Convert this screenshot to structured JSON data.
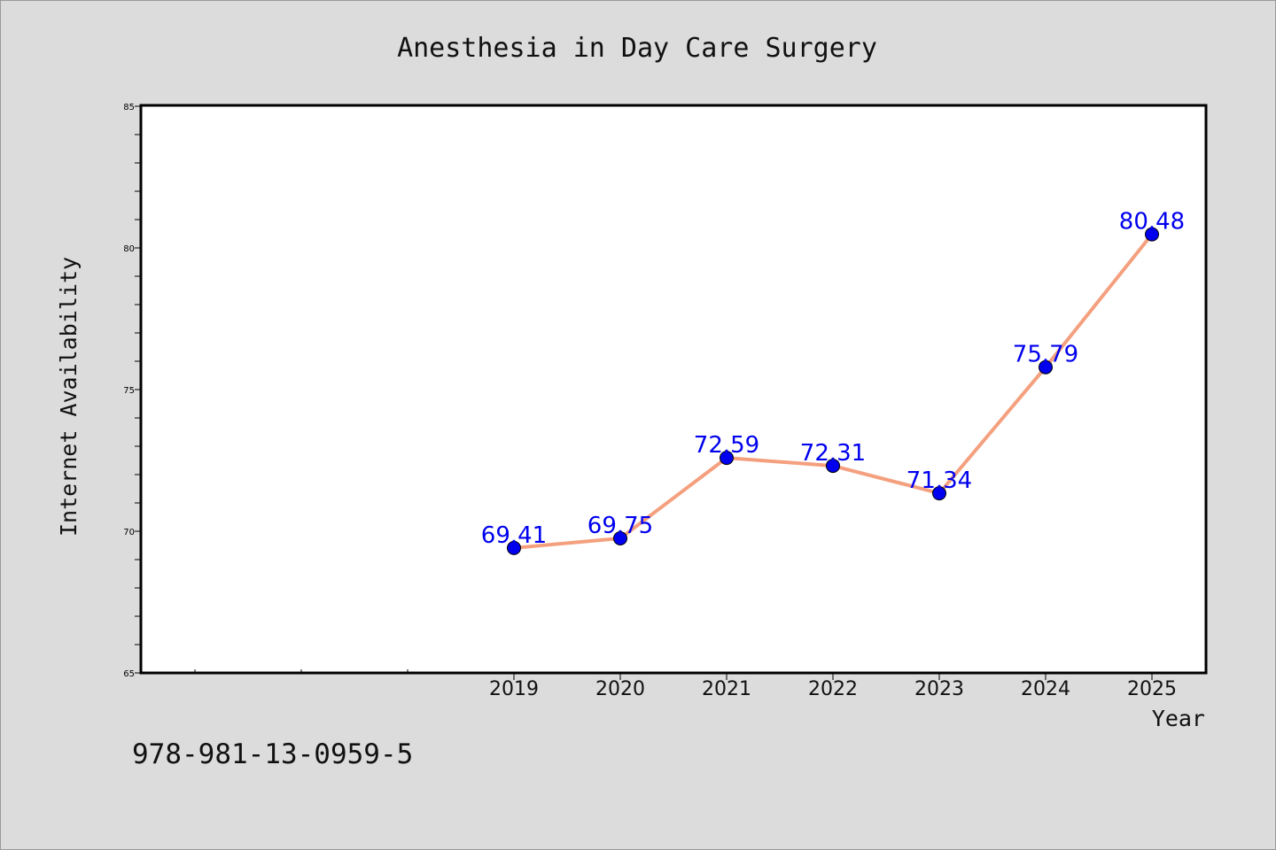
{
  "chart_data": {
    "type": "line",
    "title": "Anesthesia in Day Care Surgery",
    "xlabel": "Year",
    "ylabel": "Internet Availability",
    "categories": [
      "2019",
      "2020",
      "2021",
      "2022",
      "2023",
      "2024",
      "2025"
    ],
    "series": [
      {
        "values": [
          69.41,
          69.75,
          72.59,
          72.31,
          71.34,
          75.79,
          80.48
        ],
        "labels": [
          "69.41",
          "69.75",
          "72.59",
          "72.31",
          "71.34",
          "75.79",
          "80.48"
        ],
        "line_color": "#f4a07e",
        "marker_color": "#0000ee"
      }
    ],
    "ylim": [
      65,
      85
    ],
    "y_ticks": [
      "65",
      "70",
      "75",
      "80",
      "85"
    ],
    "grid": false,
    "legend": "none",
    "label_color": "#0000ee"
  },
  "footnote": "978-981-13-0959-5"
}
